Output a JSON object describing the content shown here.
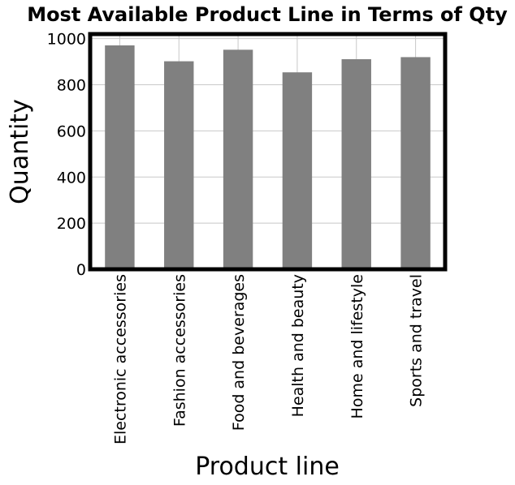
{
  "chart_data": {
    "type": "bar",
    "title": "Most Available Product Line in Terms of Qty",
    "xlabel": "Product line",
    "ylabel": "Quantity",
    "categories": [
      "Electronic accessories",
      "Fashion accessories",
      "Food and beverages",
      "Health and beauty",
      "Home and lifestyle",
      "Sports and travel"
    ],
    "values": [
      971,
      902,
      952,
      854,
      911,
      920
    ],
    "ylim": [
      0,
      1020
    ],
    "yticks": [
      0,
      200,
      400,
      600,
      800,
      1000
    ],
    "grid": true,
    "bar_color": "#808080"
  }
}
